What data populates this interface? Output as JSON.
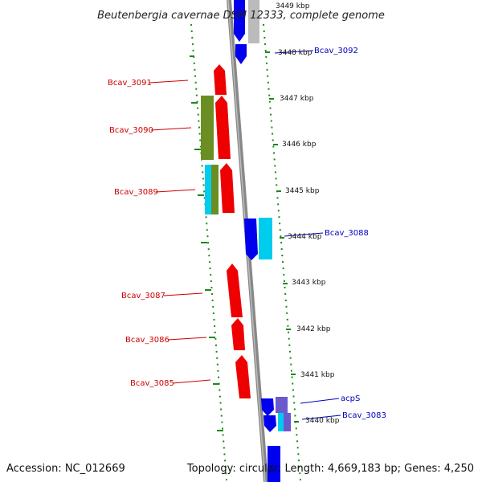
{
  "header": {
    "title": "Beutenbergia cavernae DSM 12333, complete genome"
  },
  "footer": {
    "accession": "Accession: NC_012669",
    "summary": "Topology: circular; Length: 4,669,183 bp; Genes: 4,250"
  },
  "scale": {
    "ticks": [
      {
        "label": "3449 kbp"
      },
      {
        "label": "3448 kbp"
      },
      {
        "label": "3447 kbp"
      },
      {
        "label": "3446 kbp"
      },
      {
        "label": "3445 kbp"
      },
      {
        "label": "3444 kbp"
      },
      {
        "label": "3443 kbp"
      },
      {
        "label": "3442 kbp"
      },
      {
        "label": "3441 kbp"
      },
      {
        "label": "3440 kbp"
      }
    ]
  },
  "gene_labels": {
    "left": [
      "Bcav_3091",
      "Bcav_3090",
      "Bcav_3089",
      "Bcav_3087",
      "Bcav_3086",
      "Bcav_3085"
    ],
    "right": [
      "Bcav_3092",
      "Bcav_3088",
      "acpS",
      "Bcav_3083"
    ]
  },
  "colors": {
    "forward_gene": "#ee0000",
    "reverse_gene": "#0000ee",
    "cyan_feature": "#00ccee",
    "olive_feature": "#6b8e23",
    "purple_feature": "#6a5acd",
    "grey_feature": "#bbbbbb",
    "backbone": "#888888",
    "dotted_track": "#1a8a1a",
    "left_label": "#cc0000",
    "right_label": "#0000bb"
  }
}
